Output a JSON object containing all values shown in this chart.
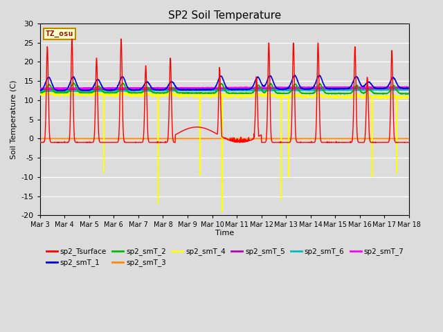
{
  "title": "SP2 Soil Temperature",
  "ylabel": "Soil Temperature (C)",
  "xlabel": "Time",
  "ylim": [
    -20,
    30
  ],
  "yticks": [
    -20,
    -15,
    -10,
    -5,
    0,
    5,
    10,
    15,
    20,
    25,
    30
  ],
  "xtick_labels": [
    "Mar 3",
    "Mar 4",
    "Mar 5",
    "Mar 6",
    "Mar 7",
    "Mar 8",
    "Mar 9",
    "Mar 10",
    "Mar 11",
    "Mar 12",
    "Mar 13",
    "Mar 14",
    "Mar 15",
    "Mar 16",
    "Mar 17",
    "Mar 18"
  ],
  "background_color": "#dcdcdc",
  "plot_bg_color": "#dcdcdc",
  "tz_label": "TZ_osu",
  "colors": {
    "sp2_Tsurface": "#ff0000",
    "sp2_smT_1": "#0000dd",
    "sp2_smT_2": "#00bb00",
    "sp2_smT_3": "#ff8800",
    "sp2_smT_4": "#ffff00",
    "sp2_smT_5": "#bb00bb",
    "sp2_smT_6": "#00bbbb",
    "sp2_smT_7": "#ff00ff"
  },
  "legend_order": [
    "sp2_Tsurface",
    "sp2_smT_1",
    "sp2_smT_2",
    "sp2_smT_3",
    "sp2_smT_4",
    "sp2_smT_5",
    "sp2_smT_6",
    "sp2_smT_7"
  ]
}
